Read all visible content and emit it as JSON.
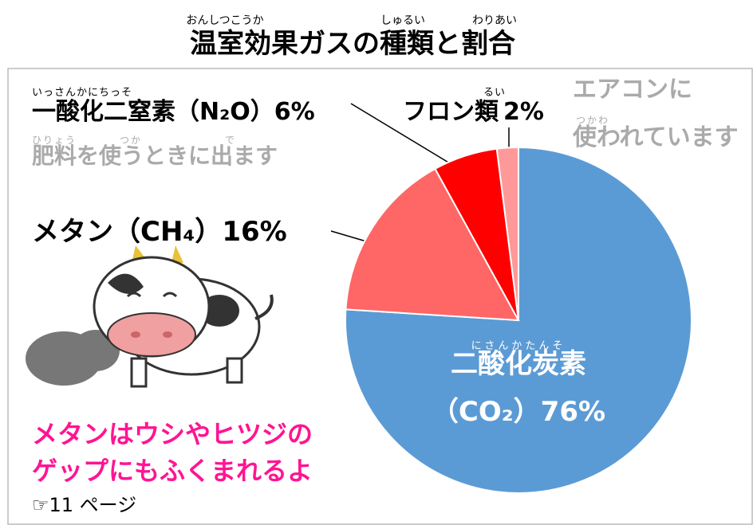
{
  "chart_data": {
    "type": "pie",
    "title": "温室効果ガスの種類と割合",
    "title_ruby": [
      "おんしつこうか",
      "しゅるい",
      "わりあい"
    ],
    "categories": [
      "二酸化炭素",
      "メタン",
      "一酸化二窒素",
      "フロン類"
    ],
    "formulas": [
      "（CO₂）",
      "（CH₄）",
      "（N₂O）",
      null
    ],
    "values": [
      76,
      16,
      6,
      2
    ],
    "value_labels": [
      "76%",
      "16%",
      "6%",
      "2%"
    ],
    "label_ruby": [
      "にさんかたんそ",
      null,
      "いっさんかにちっそ",
      "るい"
    ],
    "colors": [
      "#5b9bd5",
      "#ff6666",
      "#ff0000",
      "#ff9999"
    ],
    "notes": [
      {
        "text": "肥料を使うときに出ます",
        "ruby": [
          "ひりょう",
          "つか",
          "で"
        ]
      },
      {
        "text": "エアコンに",
        "ruby": []
      },
      {
        "text": "使われています",
        "ruby": [
          "つかわ"
        ]
      },
      {
        "text": "メタンはウシやヒツジの",
        "ruby": []
      },
      {
        "text": "ゲップにもふくまれるよ",
        "ruby": []
      },
      {
        "text": "☞11 ページ",
        "ruby": []
      }
    ]
  }
}
